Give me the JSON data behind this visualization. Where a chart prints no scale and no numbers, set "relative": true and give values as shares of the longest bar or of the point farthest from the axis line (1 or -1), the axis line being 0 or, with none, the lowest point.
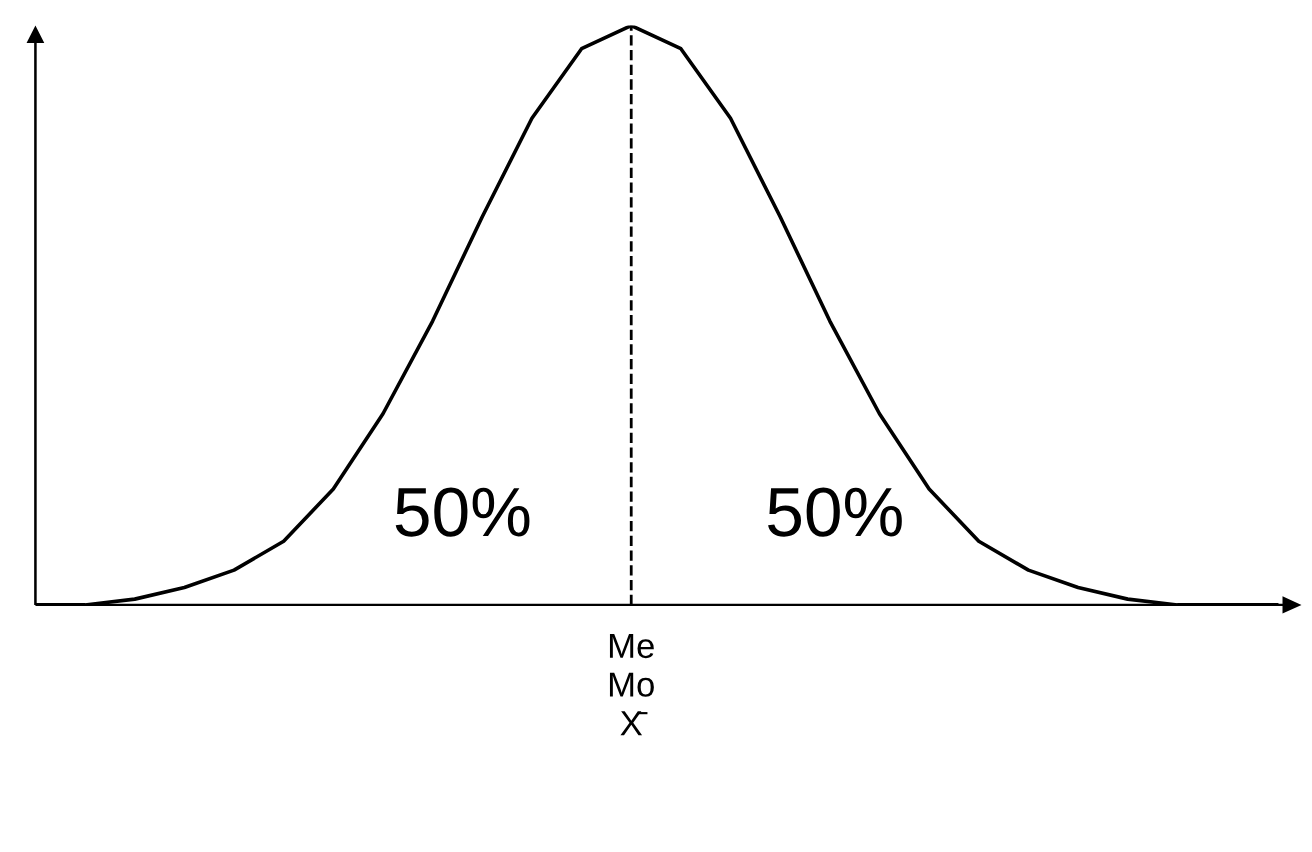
{
  "chart_data": {
    "type": "line",
    "relative": true,
    "tick_labels": false,
    "legend": false,
    "marker": "none",
    "categories": [
      null,
      null,
      null,
      null,
      null,
      null,
      null,
      null,
      null,
      null,
      null,
      null,
      null,
      null,
      null,
      null,
      null,
      null,
      null,
      null,
      null,
      null,
      null,
      null,
      null,
      null
    ],
    "series": [
      {
        "color": "#000000",
        "line_style": "solid",
        "values": [
          0,
          0,
          0.01,
          0.03,
          0.06,
          0.11,
          0.2,
          0.33,
          0.49,
          0.67,
          0.84,
          0.96,
          1,
          0.96,
          0.84,
          0.67,
          0.49,
          0.33,
          0.2,
          0.11,
          0.06,
          0.03,
          0.01,
          0,
          0,
          0
        ]
      }
    ],
    "annotations": [
      "50%",
      "50%",
      "Me\nMo\nX̄"
    ]
  }
}
